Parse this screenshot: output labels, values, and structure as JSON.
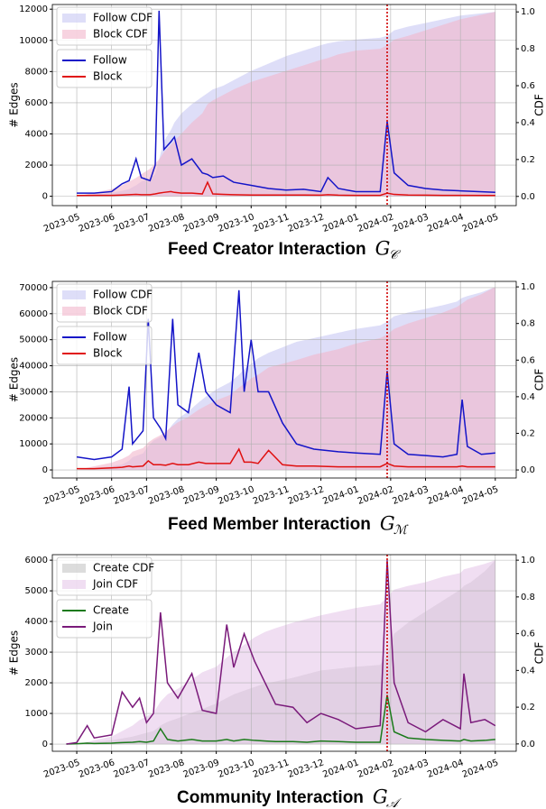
{
  "chart_data": [
    {
      "type": "line",
      "title": "Feed Creator Interaction",
      "title_math": "G",
      "title_subscript": "𝒞",
      "ylabel": "# Edges",
      "y2label": "CDF",
      "grid": true,
      "legend": "upper left",
      "vline": 8.9,
      "vline_color": "#d00000",
      "xlim": [
        -0.7,
        12.6
      ],
      "xticks": [
        {
          "value": 0,
          "label": "2023-05"
        },
        {
          "value": 1,
          "label": "2023-06"
        },
        {
          "value": 2,
          "label": "2023-07"
        },
        {
          "value": 3,
          "label": "2023-08"
        },
        {
          "value": 4,
          "label": "2023-09"
        },
        {
          "value": 5,
          "label": "2023-10"
        },
        {
          "value": 6,
          "label": "2023-11"
        },
        {
          "value": 7,
          "label": "2023-12"
        },
        {
          "value": 8,
          "label": "2024-01"
        },
        {
          "value": 9,
          "label": "2024-02"
        },
        {
          "value": 10,
          "label": "2024-03"
        },
        {
          "value": 11,
          "label": "2024-04"
        },
        {
          "value": 12,
          "label": "2024-05"
        }
      ],
      "ylim": [
        -600,
        12300
      ],
      "yticks": [
        0,
        2000,
        4000,
        6000,
        8000,
        10000,
        12000
      ],
      "y2lim": [
        -0.05,
        1.04
      ],
      "y2ticks": [
        {
          "value": 0,
          "label": "0.0"
        },
        0.2,
        0.4,
        0.6,
        0.8,
        {
          "value": 1,
          "label": "1.0"
        }
      ],
      "x": [
        0,
        0.5,
        1,
        1.3,
        1.5,
        1.7,
        1.85,
        2.1,
        2.25,
        2.36,
        2.5,
        2.7,
        2.8,
        3,
        3.3,
        3.6,
        3.75,
        3.9,
        4.2,
        4.5,
        5,
        5.5,
        6,
        6.5,
        7,
        7.2,
        7.5,
        8,
        8.7,
        8.9,
        9.1,
        9.5,
        10,
        10.5,
        11,
        12
      ],
      "series": [
        {
          "name": "Follow CDF",
          "kind": "area",
          "axis": "y2",
          "color": "#c8c8f4",
          "values": [
            0,
            0.01,
            0.02,
            0.03,
            0.04,
            0.06,
            0.08,
            0.1,
            0.12,
            0.2,
            0.3,
            0.36,
            0.4,
            0.45,
            0.5,
            0.54,
            0.56,
            0.58,
            0.6,
            0.63,
            0.68,
            0.72,
            0.76,
            0.79,
            0.82,
            0.83,
            0.84,
            0.85,
            0.86,
            0.87,
            0.9,
            0.92,
            0.94,
            0.96,
            0.98,
            1.0
          ]
        },
        {
          "name": "Block CDF",
          "kind": "area",
          "axis": "y2",
          "color": "#f2b6cc",
          "values": [
            0,
            0.02,
            0.04,
            0.06,
            0.08,
            0.1,
            0.12,
            0.15,
            0.18,
            0.2,
            0.24,
            0.28,
            0.3,
            0.34,
            0.4,
            0.45,
            0.5,
            0.52,
            0.55,
            0.58,
            0.62,
            0.65,
            0.68,
            0.71,
            0.74,
            0.75,
            0.77,
            0.79,
            0.8,
            0.82,
            0.85,
            0.87,
            0.9,
            0.93,
            0.96,
            1.0
          ]
        },
        {
          "name": "Follow",
          "kind": "line",
          "color": "#1414c8",
          "values": [
            200,
            200,
            300,
            800,
            1000,
            2400,
            1200,
            1000,
            2000,
            11900,
            3000,
            3500,
            3800,
            2000,
            2400,
            1500,
            1400,
            1200,
            1300,
            900,
            700,
            500,
            400,
            450,
            300,
            1200,
            500,
            300,
            300,
            4800,
            1500,
            700,
            500,
            400,
            350,
            250
          ]
        },
        {
          "name": "Block",
          "kind": "line",
          "color": "#e01010",
          "values": [
            50,
            60,
            60,
            80,
            100,
            120,
            100,
            100,
            150,
            200,
            250,
            300,
            250,
            200,
            200,
            150,
            900,
            150,
            120,
            100,
            80,
            80,
            80,
            80,
            70,
            100,
            70,
            60,
            60,
            200,
            120,
            80,
            70,
            60,
            60,
            50
          ]
        }
      ]
    },
    {
      "type": "line",
      "title": "Feed Member Interaction",
      "title_math": "G",
      "title_subscript": "ℳ",
      "ylabel": "# Edges",
      "y2label": "CDF",
      "grid": true,
      "legend": "upper left",
      "vline": 8.9,
      "vline_color": "#d00000",
      "xlim": [
        -0.7,
        12.6
      ],
      "xticks": [
        {
          "value": 0,
          "label": "2023-05"
        },
        {
          "value": 1,
          "label": "2023-06"
        },
        {
          "value": 2,
          "label": "2023-07"
        },
        {
          "value": 3,
          "label": "2023-08"
        },
        {
          "value": 4,
          "label": "2023-09"
        },
        {
          "value": 5,
          "label": "2023-10"
        },
        {
          "value": 6,
          "label": "2023-11"
        },
        {
          "value": 7,
          "label": "2023-12"
        },
        {
          "value": 8,
          "label": "2024-01"
        },
        {
          "value": 9,
          "label": "2024-02"
        },
        {
          "value": 10,
          "label": "2024-03"
        },
        {
          "value": 11,
          "label": "2024-04"
        },
        {
          "value": 12,
          "label": "2024-05"
        }
      ],
      "ylim": [
        -3100,
        72400
      ],
      "yticks": [
        0,
        10000,
        20000,
        30000,
        40000,
        50000,
        60000,
        70000
      ],
      "y2lim": [
        -0.044,
        1.03
      ],
      "y2ticks": [
        {
          "value": 0,
          "label": "0.0"
        },
        0.2,
        0.4,
        0.6,
        0.8,
        {
          "value": 1,
          "label": "1.0"
        }
      ],
      "x": [
        0,
        0.5,
        1,
        1.3,
        1.5,
        1.6,
        1.9,
        2.05,
        2.2,
        2.4,
        2.55,
        2.75,
        2.9,
        3.2,
        3.5,
        3.7,
        4,
        4.4,
        4.65,
        4.8,
        5,
        5.2,
        5.5,
        5.9,
        6.3,
        6.8,
        7.5,
        8,
        8.7,
        8.9,
        9.1,
        9.5,
        10,
        10.5,
        10.9,
        11.05,
        11.2,
        11.6,
        12
      ],
      "series": [
        {
          "name": "Follow CDF",
          "kind": "area",
          "axis": "y2",
          "color": "#c8c8f4",
          "values": [
            0,
            0.01,
            0.02,
            0.03,
            0.05,
            0.07,
            0.09,
            0.13,
            0.16,
            0.18,
            0.2,
            0.25,
            0.28,
            0.32,
            0.37,
            0.4,
            0.44,
            0.48,
            0.52,
            0.55,
            0.58,
            0.61,
            0.64,
            0.67,
            0.7,
            0.72,
            0.75,
            0.77,
            0.79,
            0.81,
            0.84,
            0.86,
            0.88,
            0.9,
            0.92,
            0.94,
            0.95,
            0.97,
            1.0
          ]
        },
        {
          "name": "Block CDF",
          "kind": "area",
          "axis": "y2",
          "color": "#f2b6cc",
          "values": [
            0,
            0.02,
            0.04,
            0.06,
            0.08,
            0.1,
            0.12,
            0.15,
            0.17,
            0.19,
            0.21,
            0.24,
            0.26,
            0.29,
            0.33,
            0.35,
            0.38,
            0.41,
            0.45,
            0.47,
            0.5,
            0.52,
            0.56,
            0.58,
            0.6,
            0.63,
            0.66,
            0.69,
            0.72,
            0.74,
            0.77,
            0.8,
            0.83,
            0.86,
            0.89,
            0.91,
            0.93,
            0.96,
            1.0
          ]
        },
        {
          "name": "Follow",
          "kind": "line",
          "color": "#1414c8",
          "values": [
            5000,
            4000,
            5000,
            8000,
            32000,
            10000,
            15000,
            58000,
            20000,
            16000,
            12000,
            58000,
            25000,
            22000,
            45000,
            30000,
            25000,
            22000,
            69000,
            30000,
            50000,
            30000,
            30000,
            18000,
            10000,
            8000,
            7000,
            6500,
            6000,
            38000,
            10000,
            6000,
            5500,
            5000,
            6000,
            27000,
            9000,
            6000,
            6500
          ]
        },
        {
          "name": "Block",
          "kind": "line",
          "color": "#e01010",
          "values": [
            500,
            500,
            800,
            1000,
            1500,
            1200,
            1500,
            3500,
            2000,
            2000,
            1800,
            2500,
            2000,
            2000,
            3000,
            2500,
            2500,
            2500,
            8000,
            3000,
            3000,
            2500,
            7500,
            2000,
            1500,
            1500,
            1200,
            1200,
            1200,
            2500,
            1500,
            1200,
            1200,
            1200,
            1200,
            1500,
            1200,
            1200,
            1200
          ]
        }
      ]
    },
    {
      "type": "line",
      "title": "Community Interaction",
      "title_math": "G",
      "title_subscript": "𝒜",
      "ylabel": "# Edges",
      "y2label": "CDF",
      "grid": true,
      "legend": "upper left",
      "vline": 8.9,
      "vline_color": "#d00000",
      "xlim": [
        -0.7,
        12.6
      ],
      "xticks": [
        {
          "value": 0,
          "label": "2023-05"
        },
        {
          "value": 1,
          "label": "2023-06"
        },
        {
          "value": 2,
          "label": "2023-07"
        },
        {
          "value": 3,
          "label": "2023-08"
        },
        {
          "value": 4,
          "label": "2023-09"
        },
        {
          "value": 5,
          "label": "2023-10"
        },
        {
          "value": 6,
          "label": "2023-11"
        },
        {
          "value": 7,
          "label": "2023-12"
        },
        {
          "value": 8,
          "label": "2024-01"
        },
        {
          "value": 9,
          "label": "2024-02"
        },
        {
          "value": 10,
          "label": "2024-03"
        },
        {
          "value": 11,
          "label": "2024-04"
        },
        {
          "value": 12,
          "label": "2024-05"
        }
      ],
      "ylim": [
        -235,
        6180
      ],
      "yticks": [
        0,
        1000,
        2000,
        3000,
        4000,
        5000,
        6000
      ],
      "y2lim": [
        -0.04,
        1.03
      ],
      "y2ticks": [
        {
          "value": 0,
          "label": "0.0"
        },
        0.2,
        0.4,
        0.6,
        0.8,
        {
          "value": 1,
          "label": "1.0"
        }
      ],
      "x": [
        -0.3,
        0,
        0.3,
        0.5,
        1,
        1.3,
        1.6,
        1.8,
        2,
        2.2,
        2.4,
        2.6,
        2.9,
        3.3,
        3.6,
        4,
        4.3,
        4.5,
        4.8,
        5.1,
        5.4,
        5.7,
        6.2,
        6.6,
        7,
        7.5,
        8,
        8.7,
        8.9,
        9.1,
        9.5,
        10,
        10.5,
        11,
        11.1,
        11.3,
        11.7,
        12
      ],
      "series": [
        {
          "name": "Create CDF",
          "kind": "area",
          "axis": "y2",
          "color": "#c4c4c4",
          "values": [
            0,
            0,
            0.01,
            0.01,
            0.02,
            0.03,
            0.04,
            0.05,
            0.06,
            0.07,
            0.1,
            0.12,
            0.14,
            0.17,
            0.19,
            0.22,
            0.25,
            0.27,
            0.29,
            0.31,
            0.33,
            0.34,
            0.36,
            0.38,
            0.4,
            0.41,
            0.42,
            0.43,
            0.48,
            0.6,
            0.66,
            0.72,
            0.78,
            0.84,
            0.86,
            0.88,
            0.94,
            1.0
          ]
        },
        {
          "name": "Join CDF",
          "kind": "area",
          "axis": "y2",
          "color": "#e6c8ea",
          "values": [
            0,
            0,
            0.01,
            0.02,
            0.04,
            0.07,
            0.1,
            0.13,
            0.15,
            0.17,
            0.23,
            0.27,
            0.3,
            0.35,
            0.39,
            0.42,
            0.47,
            0.5,
            0.54,
            0.58,
            0.61,
            0.63,
            0.66,
            0.68,
            0.7,
            0.72,
            0.74,
            0.76,
            0.8,
            0.84,
            0.86,
            0.88,
            0.91,
            0.93,
            0.95,
            0.96,
            0.98,
            1.0
          ]
        },
        {
          "name": "Create",
          "kind": "line",
          "color": "#1a7a1a",
          "values": [
            0,
            10,
            30,
            20,
            30,
            50,
            60,
            80,
            60,
            100,
            500,
            150,
            100,
            150,
            100,
            100,
            150,
            100,
            150,
            120,
            100,
            80,
            80,
            60,
            100,
            80,
            60,
            60,
            1600,
            400,
            200,
            150,
            120,
            100,
            150,
            100,
            120,
            150
          ]
        },
        {
          "name": "Join",
          "kind": "line",
          "color": "#7a1a7a",
          "values": [
            0,
            50,
            600,
            200,
            300,
            1700,
            1200,
            1500,
            700,
            1000,
            4300,
            2000,
            1500,
            2300,
            1100,
            1000,
            3900,
            2500,
            3600,
            2700,
            2000,
            1300,
            1200,
            700,
            1000,
            800,
            500,
            600,
            6000,
            2000,
            700,
            400,
            800,
            500,
            2300,
            700,
            800,
            600
          ]
        }
      ]
    }
  ]
}
